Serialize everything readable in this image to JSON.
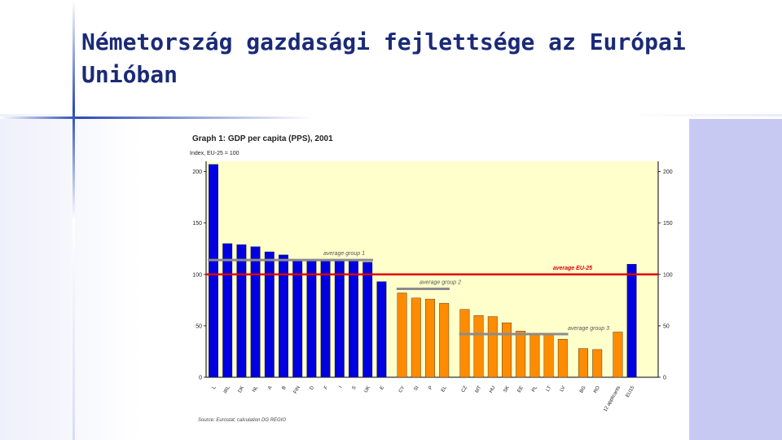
{
  "slide": {
    "title": "Németország gazdasági fejlettsége az Európai Unióban"
  },
  "colors": {
    "plot_bg": "#ffffcc",
    "bar_blue": "#0000e0",
    "bar_orange": "#ff8c00",
    "eu_line": "#e00000",
    "group_line": "#8c8c8c",
    "title_text": "#1b2a78"
  },
  "chart_data": {
    "type": "bar",
    "title": "Graph 1: GDP per capita (PPS), 2001",
    "subtitle": "Index, EU-25 = 100",
    "ylim": [
      0,
      210
    ],
    "yticks": [
      0,
      50,
      100,
      150,
      200
    ],
    "source": "Source: Eurostat, calculation DG REGIO",
    "categories": [
      "L",
      "IRL",
      "DK",
      "NL",
      "A",
      "B",
      "FIN",
      "D",
      "F",
      "I",
      "S",
      "UK",
      "E",
      "CY",
      "SI",
      "P",
      "EL",
      "CZ",
      "MT",
      "HU",
      "SK",
      "EE",
      "PL",
      "LT",
      "LV",
      "BG",
      "RO",
      "12 applicants",
      "EU15"
    ],
    "values": [
      207,
      130,
      129,
      127,
      122,
      119,
      114,
      114,
      114,
      114,
      113,
      112,
      93,
      82,
      77,
      76,
      72,
      66,
      60,
      59,
      53,
      45,
      43,
      42,
      37,
      28,
      27,
      44,
      110
    ],
    "groups": [
      "blue",
      "blue",
      "blue",
      "blue",
      "blue",
      "blue",
      "blue",
      "blue",
      "blue",
      "blue",
      "blue",
      "blue",
      "blue",
      "orange",
      "orange",
      "orange",
      "orange",
      "orange",
      "orange",
      "orange",
      "orange",
      "orange",
      "orange",
      "orange",
      "orange",
      "orange",
      "orange",
      "orange",
      "blue"
    ],
    "reference_lines": [
      {
        "label": "average EU-25",
        "value": 100,
        "from": 0,
        "to": 28
      },
      {
        "label": "average group 1",
        "value": 114,
        "from": 0,
        "to": 11
      },
      {
        "label": "average group 2",
        "value": 86,
        "from": 13,
        "to": 16
      },
      {
        "label": "average group 3",
        "value": 42,
        "from": 17,
        "to": 24
      }
    ]
  }
}
